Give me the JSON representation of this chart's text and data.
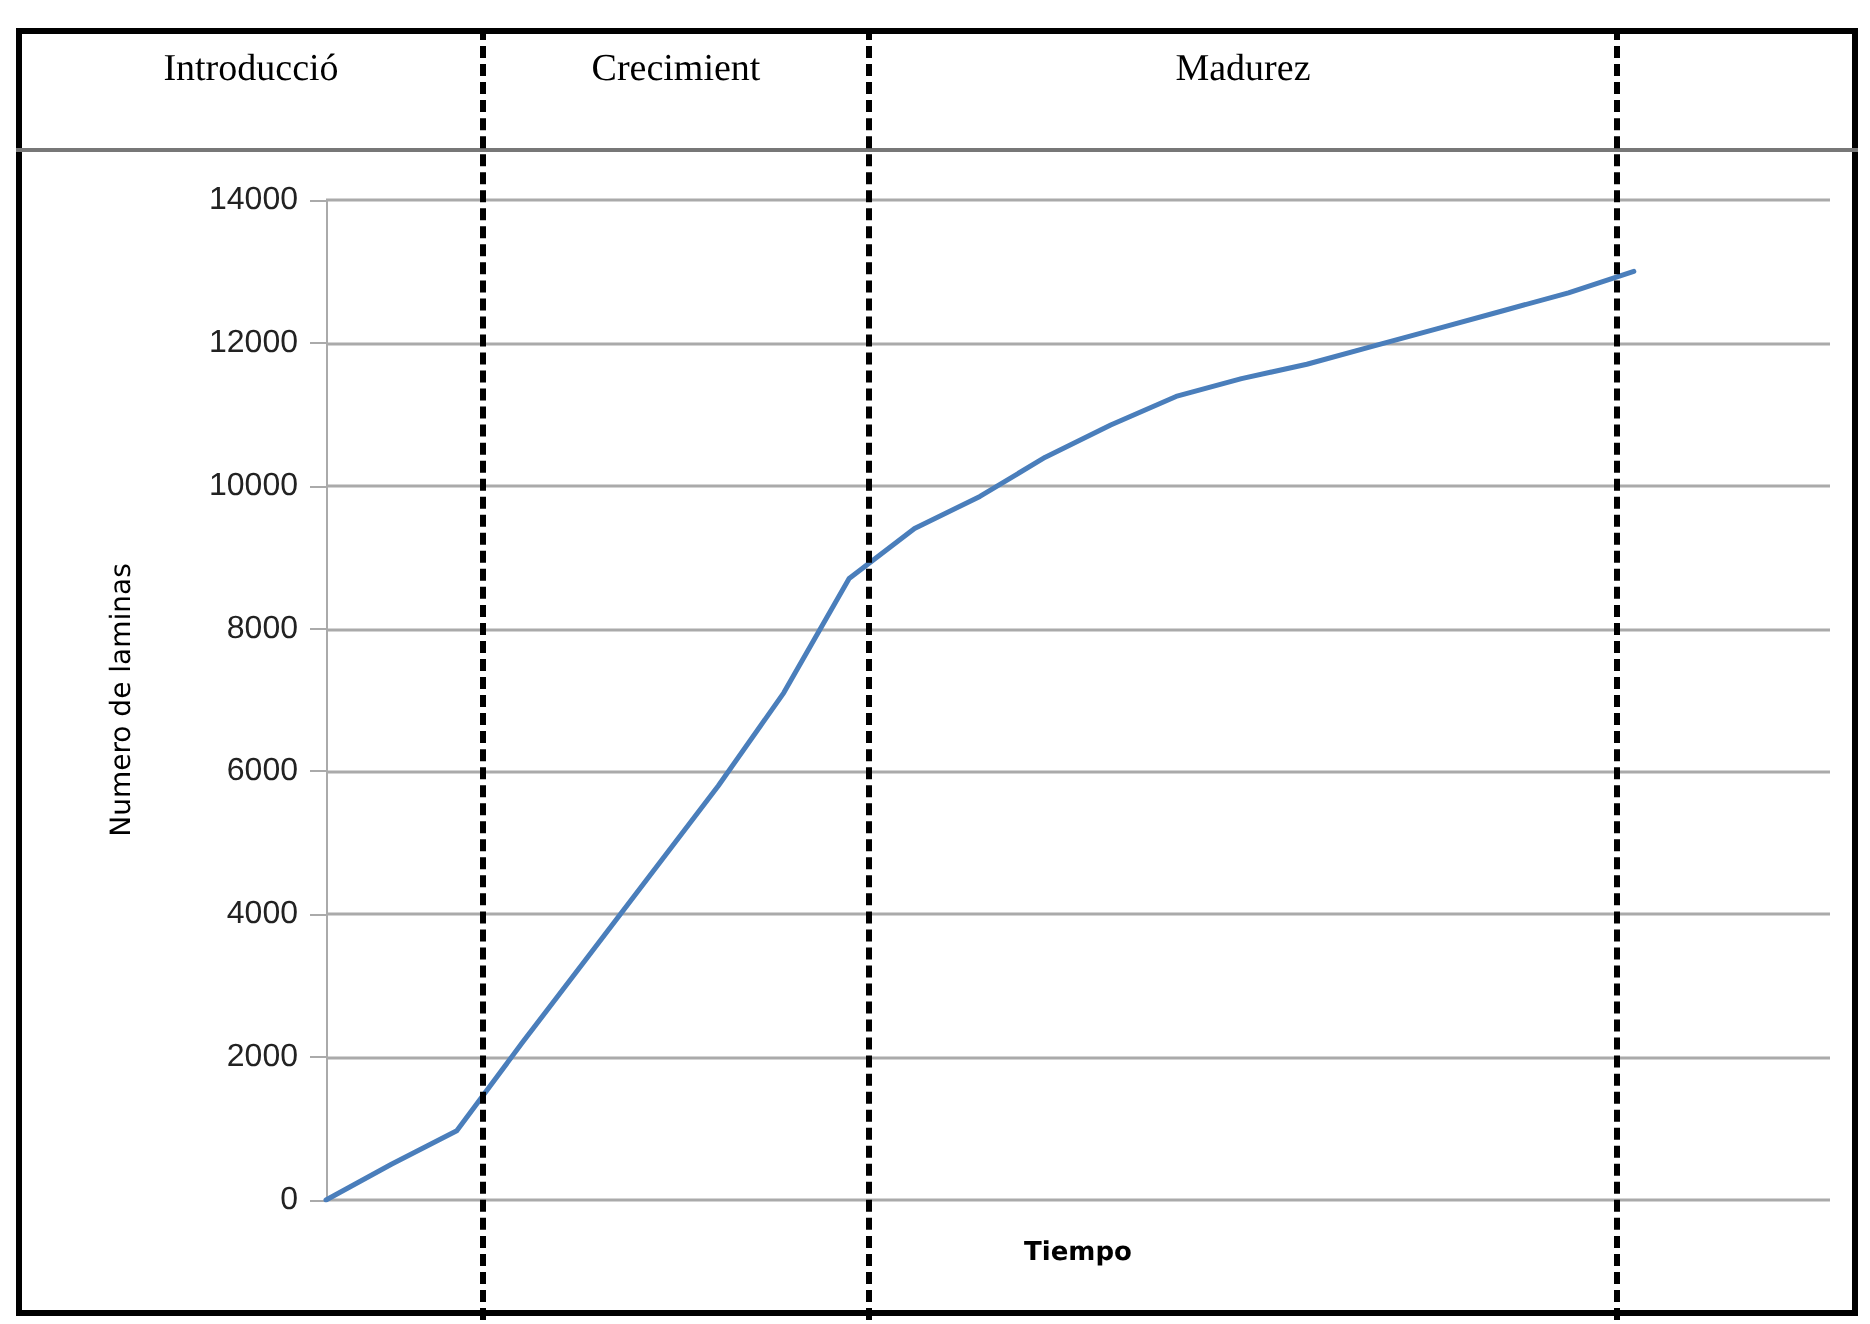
{
  "chart_data": {
    "type": "line",
    "xlabel": "Tiempo",
    "ylabel": "Numero de laminas",
    "categories": [
      null,
      null,
      null,
      null,
      null,
      null,
      null,
      null,
      null,
      null,
      null,
      null,
      null,
      null,
      null,
      null,
      null,
      null,
      null,
      null,
      null
    ],
    "series": [
      {
        "color": "#4a7ebb",
        "values": [
          0,
          500,
          970,
          2200,
          3400,
          4600,
          5800,
          7100,
          8700,
          9400,
          9850,
          10400,
          10850,
          11250,
          11500,
          11700,
          11950,
          12200,
          12450,
          12700,
          13000
        ]
      }
    ],
    "ylim": [
      0,
      14000
    ],
    "yticks": [
      0,
      2000,
      4000,
      6000,
      8000,
      10000,
      12000,
      14000
    ],
    "tick_labels": "y",
    "grid": "y",
    "marker": "none",
    "line_style": "solid",
    "annotations": [
      "Introducció",
      "Crecimient",
      "Madurez"
    ]
  }
}
